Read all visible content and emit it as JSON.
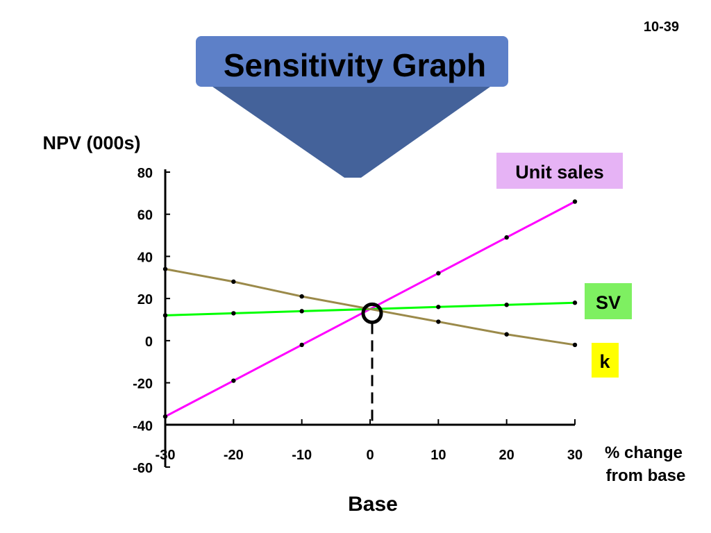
{
  "slide_number": "10-39",
  "title": "Sensitivity Graph",
  "colors": {
    "title_box": "#5d80c8",
    "title_box_dark": "#44629a",
    "unit_sales_line": "#ff00ff",
    "sv_line": "#00ff00",
    "k_line": "#9b8a4a",
    "unit_sales_label_bg": "#e6b3f5",
    "sv_label_bg": "#7ef061",
    "k_label_bg": "#ffff00"
  },
  "chart_data": {
    "type": "line",
    "ylabel": "NPV (000s)",
    "xlabel": "% change from base",
    "base_label": "Base",
    "x": [
      -30,
      -20,
      -10,
      0,
      10,
      20,
      30
    ],
    "x_ticks": [
      "-30",
      "-20",
      "-10",
      "0",
      "10",
      "20",
      "30"
    ],
    "y_ticks": [
      "80",
      "60",
      "40",
      "20",
      "0",
      "-20",
      "-40",
      "-60"
    ],
    "ylim": [
      -60,
      80
    ],
    "xlim": [
      -30,
      30
    ],
    "series": [
      {
        "name": "Unit sales",
        "values": [
          -36,
          -19,
          -2,
          15,
          32,
          49,
          66
        ]
      },
      {
        "name": "SV",
        "values": [
          12,
          13,
          14,
          15,
          16,
          17,
          18
        ]
      },
      {
        "name": "k",
        "values": [
          34,
          28,
          21,
          15,
          9,
          3,
          -2
        ]
      }
    ],
    "base_point": [
      0,
      13
    ]
  }
}
